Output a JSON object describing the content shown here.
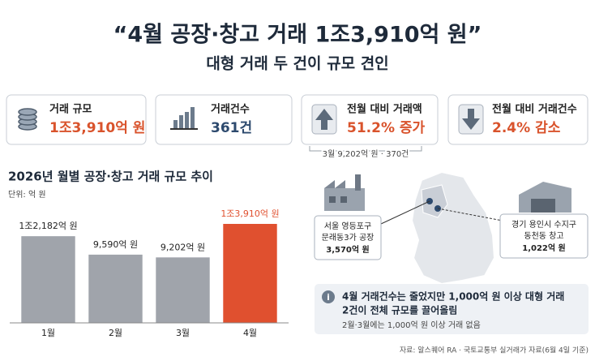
{
  "header": {
    "title": "“4월 공장·창고 거래 1조3,910억 원”",
    "subtitle": "대형 거래 두 건이 규모 견인"
  },
  "kpis": [
    {
      "label": "거래 규모",
      "value": "1조3,910억 원"
    },
    {
      "label": "거래건수",
      "value": "361건"
    },
    {
      "label": "전월 대비 거래액",
      "value": "51.2% 증가"
    },
    {
      "label": "전월 대비 거래건수",
      "value": "2.4% 감소"
    }
  ],
  "kpi_note": "3월 9,202억 원 · 370건",
  "chart_data": {
    "type": "bar",
    "title": "2026년 월별 공장·창고 거래 규모 추이",
    "unit_note": "단위: 억 원",
    "categories": [
      "1월",
      "2월",
      "3월",
      "4월"
    ],
    "values": [
      12182,
      9590,
      9202,
      13910
    ],
    "value_labels": [
      "1조2,182억 원",
      "9,590억 원",
      "9,202억 원",
      "1조3,910억 원"
    ],
    "colors": [
      "#a0a4ab",
      "#a0a4ab",
      "#a0a4ab",
      "#e0502f"
    ]
  },
  "map": {
    "left": {
      "lines": [
        "서울 영등포구",
        "문래동3가 공장",
        "3,570억 원"
      ]
    },
    "right": {
      "lines": [
        "경기 용인시 수지구",
        "동천동 창고",
        "1,022억 원"
      ]
    }
  },
  "info": {
    "headline": [
      "4월 거래건수는 줄었지만 1,000억 원 이상 대형 거래",
      "2건이 전체 규모를 끌어올림"
    ],
    "detail": "2월·3월에는 1,000억 원 이상 거래 없음"
  },
  "source": "자료: 알스퀘어 RA · 국토교통부 실거래가 자료(6월 4일 기준)"
}
